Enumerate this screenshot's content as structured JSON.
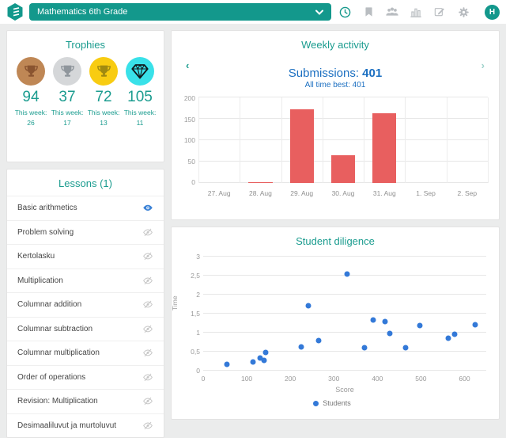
{
  "colors": {
    "accent": "#1b9c8f",
    "accent_dark": "#13988c",
    "blue": "#1b6fc1",
    "bar": "#e85f5f",
    "dot": "#3379d8",
    "icon_gray": "#b9bdc1"
  },
  "top_bar": {
    "class_selector": {
      "value": "Mathematics 6th Grade"
    },
    "icons": [
      "clock-icon",
      "bookmark-icon",
      "users-group-icon",
      "bar-chart-icon",
      "edit-icon",
      "settings-gear-icon"
    ],
    "avatar_initial": "H"
  },
  "trophies": {
    "title": "Trophies",
    "items": [
      {
        "type": "bronze-trophy",
        "circle_color": "#bf8755",
        "icon_color": "#8a5430",
        "count": "94",
        "week_label": "This week:",
        "week_count": "26"
      },
      {
        "type": "silver-trophy",
        "circle_color": "#d5d7d9",
        "icon_color": "#8f969c",
        "count": "37",
        "week_label": "This week:",
        "week_count": "17"
      },
      {
        "type": "gold-trophy",
        "circle_color": "#f8cc12",
        "icon_color": "#a08a10",
        "count": "72",
        "week_label": "This week:",
        "week_count": "13"
      },
      {
        "type": "diamond",
        "circle_color": "#39e1e9",
        "icon_color": "#10191c",
        "count": "105",
        "week_label": "This week:",
        "week_count": "11"
      }
    ]
  },
  "lessons": {
    "title": "Lessons (1)",
    "items": [
      {
        "label": "Basic arithmetics",
        "visible": true
      },
      {
        "label": "Problem solving",
        "visible": false
      },
      {
        "label": "Kertolasku",
        "visible": false
      },
      {
        "label": "Multiplication",
        "visible": false
      },
      {
        "label": "Columnar addition",
        "visible": false
      },
      {
        "label": "Columnar subtraction",
        "visible": false
      },
      {
        "label": "Columnar multiplication",
        "visible": false
      },
      {
        "label": "Order of operations",
        "visible": false
      },
      {
        "label": "Revision: Multiplication",
        "visible": false
      },
      {
        "label": "Desimaaliluvut ja murtoluvut",
        "visible": false
      }
    ]
  },
  "weekly": {
    "title": "Weekly activity",
    "prev_arrow": "‹",
    "next_arrow": "›",
    "submissions_label": "Submissions:",
    "submissions_value": "401",
    "all_time_best": "All time best: 401"
  },
  "diligence": {
    "title": "Student diligence"
  },
  "chart_data": [
    {
      "type": "bar",
      "title": "Weekly activity",
      "categories": [
        "27. Aug",
        "28. Aug",
        "29. Aug",
        "30. Aug",
        "31. Aug",
        "1. Sep",
        "2. Sep"
      ],
      "values": [
        0,
        2,
        172,
        64,
        163,
        0,
        0
      ],
      "xlabel": "",
      "ylabel": "",
      "ylim": [
        0,
        200
      ],
      "ytick_step": 50,
      "grid": true,
      "bar_color": "#e85f5f"
    },
    {
      "type": "scatter",
      "title": "Student diligence",
      "xlabel": "Score",
      "ylabel": "Time",
      "xlim": [
        0,
        650
      ],
      "ylim": [
        0,
        3
      ],
      "xtick_step": 100,
      "ytick_step": 0.5,
      "grid": "horizontal",
      "legend": [
        {
          "label": "Students",
          "color": "#3379d8"
        }
      ],
      "points": [
        [
          55,
          0.17
        ],
        [
          115,
          0.22
        ],
        [
          130,
          0.33
        ],
        [
          140,
          0.28
        ],
        [
          143,
          0.48
        ],
        [
          225,
          0.62
        ],
        [
          242,
          1.71
        ],
        [
          265,
          0.8
        ],
        [
          330,
          2.54
        ],
        [
          370,
          0.6
        ],
        [
          390,
          1.33
        ],
        [
          418,
          1.3
        ],
        [
          428,
          0.97
        ],
        [
          465,
          0.61
        ],
        [
          497,
          1.19
        ],
        [
          563,
          0.85
        ],
        [
          578,
          0.95
        ],
        [
          625,
          1.2
        ]
      ]
    }
  ]
}
